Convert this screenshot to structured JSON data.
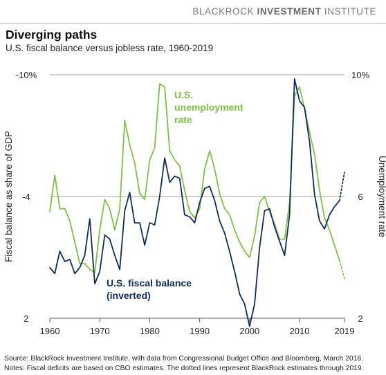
{
  "header": {
    "brand_light": "BLACKROCK",
    "brand_bold": "INVESTMENT",
    "brand_light2": "INSTITUTE"
  },
  "title": "Diverging paths",
  "subtitle": "U.S. fiscal balance versus jobless rate, 1960-2019",
  "footer": {
    "source": "Source: BlackRock Investment Institute, with data from Congressional Budget Office and Bloomberg, March 2018.",
    "notes": "Notes: Fiscal deficits are based on CBO estimates. The dotted lines represent BlackRock estimates through 2019."
  },
  "colors": {
    "unemployment": "#7dc242",
    "fiscal": "#0d2d5e",
    "gridline": "#9e9e9e"
  },
  "chart_data": {
    "type": "line",
    "ylabel_left": "Fiscal balance as share of GDP",
    "ylabel_right": "Unemployment rate",
    "x_range": [
      1960,
      2019
    ],
    "x_ticks": [
      1960,
      1970,
      1980,
      1990,
      2000,
      2010,
      2019
    ],
    "x_tick_labels": [
      "1960",
      "1970",
      "1980",
      "1990",
      "2000",
      "2010",
      "2019"
    ],
    "left_axis": {
      "range": [
        -10,
        2
      ],
      "inverted": true,
      "ticks": [
        -10,
        -4,
        2
      ],
      "tick_labels": [
        "-10%",
        "-4",
        "2"
      ]
    },
    "right_axis": {
      "range": [
        2,
        10
      ],
      "ticks": [
        10,
        6,
        2
      ],
      "tick_labels": [
        "10%",
        "6",
        "2"
      ]
    },
    "gridlines": [
      -10,
      -4
    ],
    "series": [
      {
        "name_lines": [
          "U.S.",
          "unemployment",
          "rate"
        ],
        "axis": "right",
        "color_key": "unemployment",
        "x": [
          1960,
          1961,
          1962,
          1963,
          1964,
          1965,
          1966,
          1967,
          1968,
          1969,
          1970,
          1971,
          1972,
          1973,
          1974,
          1975,
          1976,
          1977,
          1978,
          1979,
          1980,
          1981,
          1982,
          1983,
          1984,
          1985,
          1986,
          1987,
          1988,
          1989,
          1990,
          1991,
          1992,
          1993,
          1994,
          1995,
          1996,
          1997,
          1998,
          1999,
          2000,
          2001,
          2002,
          2003,
          2004,
          2005,
          2006,
          2007,
          2008,
          2009,
          2010,
          2011,
          2012,
          2013,
          2014,
          2015,
          2016,
          2017,
          2018
        ],
        "y": [
          5.5,
          6.7,
          5.6,
          5.6,
          5.2,
          4.5,
          3.8,
          3.8,
          3.6,
          3.5,
          4.9,
          5.9,
          5.6,
          4.9,
          5.6,
          8.5,
          7.7,
          7.1,
          6.1,
          5.9,
          7.2,
          7.6,
          9.7,
          9.6,
          7.5,
          7.2,
          7.0,
          6.2,
          5.5,
          5.3,
          5.6,
          6.9,
          7.5,
          6.9,
          6.1,
          5.6,
          5.4,
          4.9,
          4.5,
          4.2,
          4.0,
          4.7,
          5.8,
          6.0,
          5.5,
          5.1,
          4.6,
          4.6,
          5.8,
          9.3,
          9.6,
          8.9,
          8.1,
          7.4,
          6.2,
          5.3,
          4.9,
          4.4,
          3.9
        ],
        "estimate": {
          "x": [
            2018,
            2019
          ],
          "y": [
            3.9,
            3.3
          ]
        }
      },
      {
        "name_lines": [
          "U.S. fiscal balance",
          "(inverted)"
        ],
        "axis": "left",
        "color_key": "fiscal",
        "x": [
          1960,
          1961,
          1962,
          1963,
          1964,
          1965,
          1966,
          1967,
          1968,
          1969,
          1970,
          1971,
          1972,
          1973,
          1974,
          1975,
          1976,
          1977,
          1978,
          1979,
          1980,
          1981,
          1982,
          1983,
          1984,
          1985,
          1986,
          1987,
          1988,
          1989,
          1990,
          1991,
          1992,
          1993,
          1994,
          1995,
          1996,
          1997,
          1998,
          1999,
          2000,
          2001,
          2002,
          2003,
          2004,
          2005,
          2006,
          2007,
          2008,
          2009,
          2010,
          2011,
          2012,
          2013,
          2014,
          2015,
          2016,
          2017,
          2018
        ],
        "y": [
          -0.5,
          -0.2,
          -1.3,
          -0.8,
          -0.9,
          -0.2,
          -0.5,
          -1.1,
          -2.9,
          0.3,
          -0.3,
          -2.1,
          -1.9,
          -1.1,
          -0.4,
          -3.3,
          -4.2,
          -2.7,
          -2.7,
          -1.6,
          -2.7,
          -2.6,
          -4.0,
          -5.9,
          -4.7,
          -5.0,
          -4.9,
          -3.1,
          -3.0,
          -2.7,
          -3.7,
          -4.4,
          -4.5,
          -3.8,
          -2.8,
          -2.2,
          -1.3,
          -0.3,
          0.8,
          1.3,
          2.4,
          1.3,
          -1.5,
          -3.3,
          -3.4,
          -2.5,
          -1.8,
          -1.1,
          -3.1,
          -9.8,
          -8.7,
          -8.4,
          -6.7,
          -4.1,
          -2.8,
          -2.4,
          -3.1,
          -3.5,
          -3.8
        ],
        "estimate": {
          "x": [
            2018,
            2019
          ],
          "y": [
            -3.8,
            -5.2
          ]
        }
      }
    ]
  }
}
